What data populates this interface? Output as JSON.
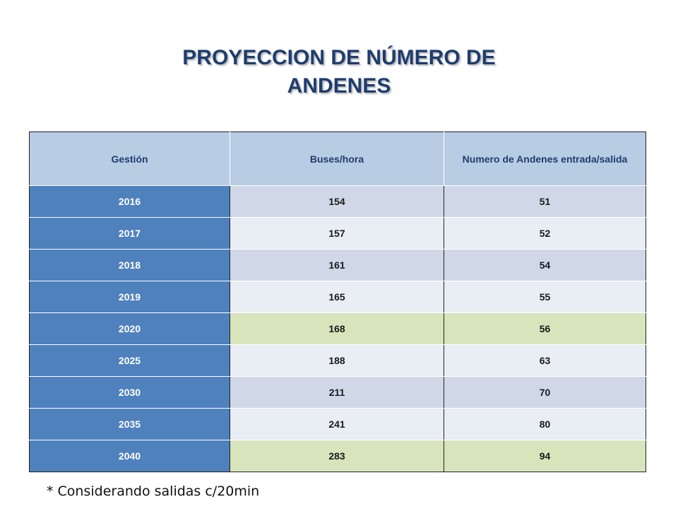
{
  "title": {
    "line1": "PROYECCION DE NÚMERO DE",
    "line2": "ANDENES"
  },
  "table": {
    "headers": [
      "Gestión",
      "Buses/hora",
      "Numero de Andenes entrada/salida"
    ],
    "rows": [
      {
        "gestion": "2016",
        "buses": "154",
        "andenes": "51",
        "shade": "dark"
      },
      {
        "gestion": "2017",
        "buses": "157",
        "andenes": "52",
        "shade": "light"
      },
      {
        "gestion": "2018",
        "buses": "161",
        "andenes": "54",
        "shade": "dark"
      },
      {
        "gestion": "2019",
        "buses": "165",
        "andenes": "55",
        "shade": "light"
      },
      {
        "gestion": "2020",
        "buses": "168",
        "andenes": "56",
        "shade": "green"
      },
      {
        "gestion": "2025",
        "buses": "188",
        "andenes": "63",
        "shade": "light"
      },
      {
        "gestion": "2030",
        "buses": "211",
        "andenes": "70",
        "shade": "dark"
      },
      {
        "gestion": "2035",
        "buses": "241",
        "andenes": "80",
        "shade": "light"
      },
      {
        "gestion": "2040",
        "buses": "283",
        "andenes": "94",
        "shade": "green"
      }
    ]
  },
  "footnote": "* Considerando salidas c/20min",
  "colors": {
    "title": "#1f3d6e",
    "header_bg": "#b8cce4",
    "year_bg": "#4f81bd",
    "row_dark": "#d0d8e8",
    "row_light": "#e9edf4",
    "row_green": "#d8e4bc"
  }
}
